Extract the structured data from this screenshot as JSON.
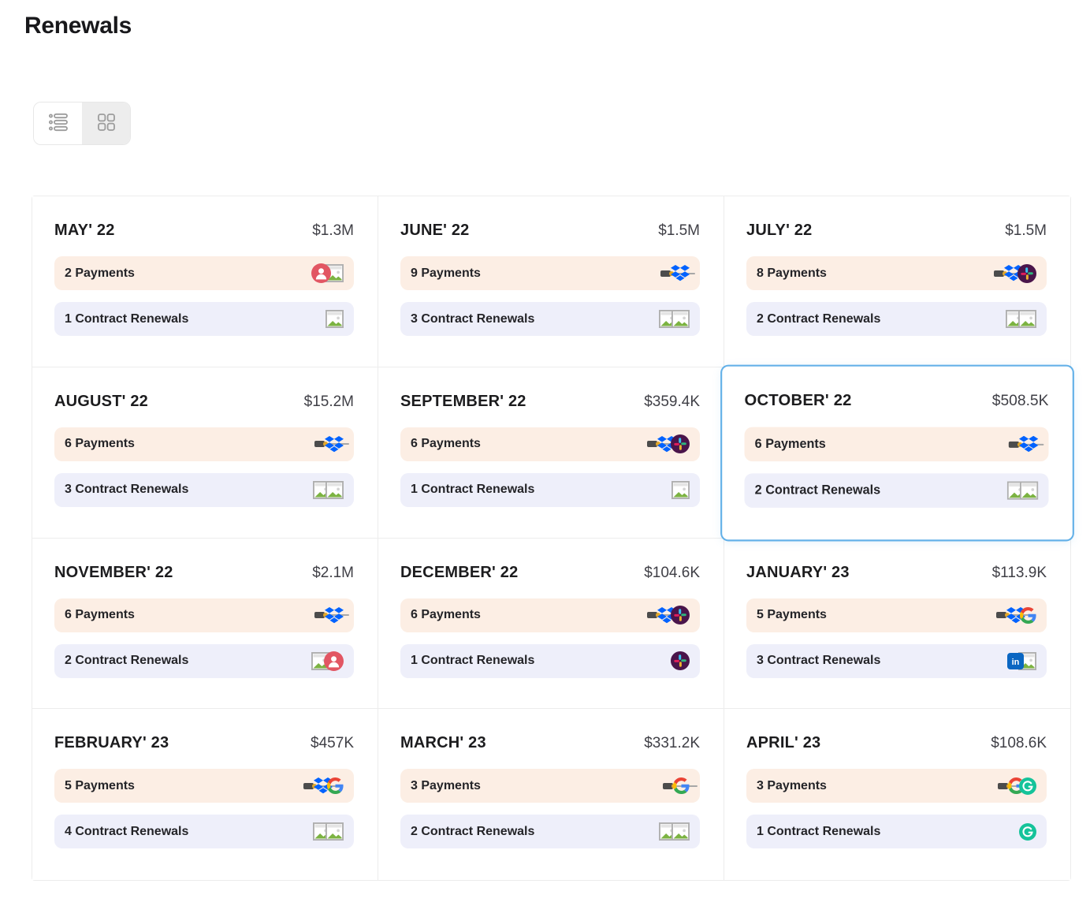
{
  "page": {
    "title": "Renewals"
  },
  "toolbar": {
    "view_buttons": [
      {
        "name": "list-view",
        "active": true
      },
      {
        "name": "grid-view",
        "active": false
      }
    ]
  },
  "colors": {
    "payments_row_bg": "#fceee4",
    "renewals_row_bg": "#eeeffa",
    "selected_card_border": "#62b0e8",
    "dropbox_blue": "#0062ff",
    "linkedin_blue": "#0a66c2",
    "grammarly_green": "#15c39a",
    "slack_circle_bg": "#4a154b",
    "avatar_red": "#e25663"
  },
  "months": [
    {
      "title": "MAY' 22",
      "amount": "$1.3M",
      "selected": false,
      "payments": {
        "label": "2 Payments",
        "logos": [
          "avatar",
          "image-placeholder"
        ]
      },
      "renewals": {
        "label": "1 Contract Renewals",
        "logos": [
          "image-placeholder"
        ]
      }
    },
    {
      "title": "JUNE' 22",
      "amount": "$1.5M",
      "selected": false,
      "payments": {
        "label": "9 Payments",
        "logos": [
          "wordmark",
          "dropbox"
        ]
      },
      "renewals": {
        "label": "3 Contract Renewals",
        "logos": [
          "image-placeholder",
          "image-placeholder"
        ]
      }
    },
    {
      "title": "JULY' 22",
      "amount": "$1.5M",
      "selected": false,
      "payments": {
        "label": "8 Payments",
        "logos": [
          "wordmark",
          "dropbox",
          "slack"
        ]
      },
      "renewals": {
        "label": "2 Contract Renewals",
        "logos": [
          "image-placeholder",
          "image-placeholder"
        ]
      }
    },
    {
      "title": "AUGUST' 22",
      "amount": "$15.2M",
      "selected": false,
      "payments": {
        "label": "6 Payments",
        "logos": [
          "wordmark",
          "dropbox"
        ]
      },
      "renewals": {
        "label": "3 Contract Renewals",
        "logos": [
          "image-placeholder",
          "image-placeholder"
        ]
      }
    },
    {
      "title": "SEPTEMBER' 22",
      "amount": "$359.4K",
      "selected": false,
      "payments": {
        "label": "6 Payments",
        "logos": [
          "wordmark",
          "dropbox",
          "slack"
        ]
      },
      "renewals": {
        "label": "1 Contract Renewals",
        "logos": [
          "image-placeholder"
        ]
      }
    },
    {
      "title": "OCTOBER' 22",
      "amount": "$508.5K",
      "selected": true,
      "payments": {
        "label": "6 Payments",
        "logos": [
          "wordmark",
          "dropbox"
        ]
      },
      "renewals": {
        "label": "2 Contract Renewals",
        "logos": [
          "image-placeholder",
          "image-placeholder"
        ]
      }
    },
    {
      "title": "NOVEMBER' 22",
      "amount": "$2.1M",
      "selected": false,
      "payments": {
        "label": "6 Payments",
        "logos": [
          "wordmark",
          "dropbox"
        ]
      },
      "renewals": {
        "label": "2 Contract Renewals",
        "logos": [
          "image-placeholder",
          "avatar"
        ]
      }
    },
    {
      "title": "DECEMBER' 22",
      "amount": "$104.6K",
      "selected": false,
      "payments": {
        "label": "6 Payments",
        "logos": [
          "wordmark",
          "dropbox",
          "slack"
        ]
      },
      "renewals": {
        "label": "1 Contract Renewals",
        "logos": [
          "slack"
        ]
      }
    },
    {
      "title": "JANUARY' 23",
      "amount": "$113.9K",
      "selected": false,
      "payments": {
        "label": "5 Payments",
        "logos": [
          "wordmark",
          "dropbox",
          "google"
        ]
      },
      "renewals": {
        "label": "3 Contract Renewals",
        "logos": [
          "linkedin",
          "image-placeholder"
        ]
      }
    },
    {
      "title": "FEBRUARY' 23",
      "amount": "$457K",
      "selected": false,
      "payments": {
        "label": "5 Payments",
        "logos": [
          "wordmark",
          "dropbox",
          "google"
        ]
      },
      "renewals": {
        "label": "4 Contract Renewals",
        "logos": [
          "image-placeholder",
          "image-placeholder"
        ]
      }
    },
    {
      "title": "MARCH' 23",
      "amount": "$331.2K",
      "selected": false,
      "payments": {
        "label": "3 Payments",
        "logos": [
          "wordmark",
          "google"
        ]
      },
      "renewals": {
        "label": "2 Contract Renewals",
        "logos": [
          "image-placeholder",
          "image-placeholder"
        ]
      }
    },
    {
      "title": "APRIL' 23",
      "amount": "$108.6K",
      "selected": false,
      "payments": {
        "label": "3 Payments",
        "logos": [
          "wordmark",
          "google",
          "grammarly"
        ]
      },
      "renewals": {
        "label": "1 Contract Renewals",
        "logos": [
          "grammarly"
        ]
      }
    }
  ]
}
